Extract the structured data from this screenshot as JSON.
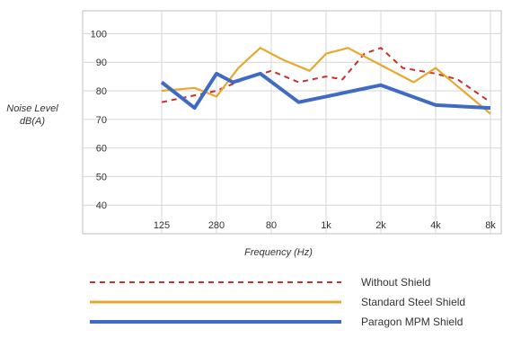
{
  "chart_data": {
    "type": "line",
    "xlabel": "Frequency (Hz)",
    "ylabel_line1": "Noise Level",
    "ylabel_line2": "dB(A)",
    "x_tick_labels": [
      "125",
      "280",
      "80",
      "1k",
      "2k",
      "4k",
      "8k"
    ],
    "y_ticks": [
      40,
      50,
      60,
      70,
      80,
      90,
      100
    ],
    "ylim": [
      30,
      108
    ],
    "grid": true,
    "legend_position": "bottom",
    "series": [
      {
        "name": "Without Shield",
        "color": "#c8302c",
        "dash": "dashed",
        "x": [
          0,
          1,
          1.5,
          2,
          2.5,
          3,
          3.3,
          3.7,
          4,
          4.4,
          5,
          5.4,
          6
        ],
        "y": [
          76,
          80,
          84,
          87,
          83,
          85,
          84,
          93,
          95,
          88,
          86,
          84,
          76
        ]
      },
      {
        "name": "Standard Steel Shield",
        "color": "#e6a82e",
        "dash": "solid",
        "x": [
          0,
          0.6,
          1,
          1.4,
          1.8,
          2.2,
          2.7,
          3,
          3.4,
          4,
          4.6,
          5,
          6
        ],
        "y": [
          80,
          81,
          78,
          88,
          95,
          91,
          87,
          93,
          95,
          89,
          83,
          88,
          72
        ]
      },
      {
        "name": "Paragon MPM Shield",
        "color": "#3f6bc4",
        "dash": "solid",
        "x": [
          0,
          0.6,
          1,
          1.3,
          1.8,
          2.5,
          3,
          3.5,
          4,
          5,
          6
        ],
        "y": [
          83,
          74,
          86,
          83,
          86,
          76,
          78,
          80,
          82,
          75,
          74
        ]
      }
    ]
  }
}
